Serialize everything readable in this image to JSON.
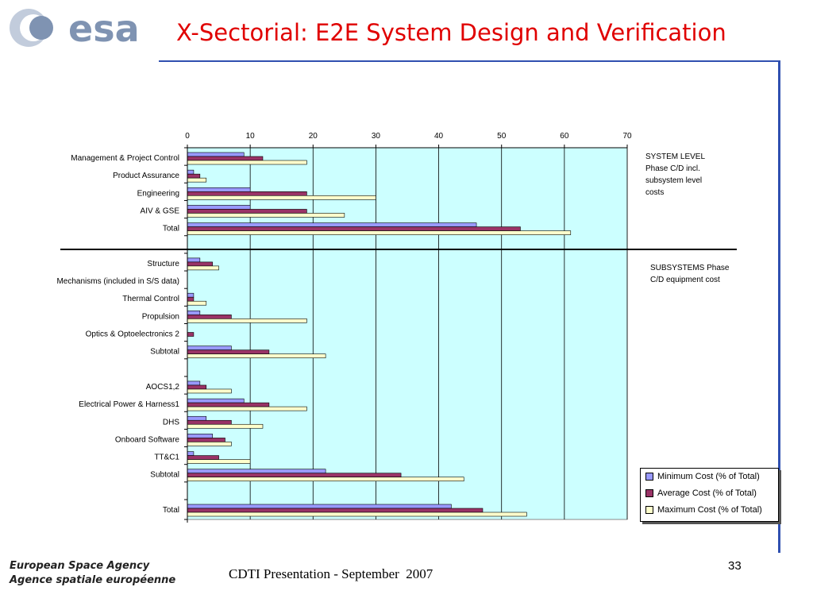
{
  "slide": {
    "logo_text": "esa",
    "title": "X-Sectorial: E2E System Design and Verification",
    "footer_agency_en": "European Space Agency",
    "footer_agency_fr": "Agence spatiale européenne",
    "footer_presentation": "CDTI Presentation - September  2007",
    "page_number": "33",
    "notes": {
      "system_level": "SYSTEM LEVEL\nPhase C/D incl.\nsubsystem level\ncosts",
      "subsystems": "SUBSYSTEMS Phase\nC/D equipment cost"
    }
  },
  "colors": {
    "title": "#e00000",
    "plot_background": "#ccffff",
    "minimum": "#9999ff",
    "average": "#993366",
    "maximum": "#ffffcc"
  },
  "chart_data": {
    "type": "bar",
    "orientation": "horizontal",
    "xlim": [
      0,
      70
    ],
    "x_ticks": [
      "0",
      "10",
      "20",
      "30",
      "40",
      "50",
      "60",
      "70"
    ],
    "categories": [
      "Management & Project Control",
      "Product Assurance",
      "Engineering",
      "AIV & GSE",
      "Total",
      "",
      "Structure",
      "Mechanisms (included in S/S data)",
      "Thermal Control",
      "Propulsion",
      "Optics & Optoelectronics 2",
      "Subtotal",
      "",
      "AOCS1,2",
      "Electrical Power & Harness1",
      "DHS",
      "Onboard Software",
      "TT&C1",
      "Subtotal",
      "",
      "Total"
    ],
    "series": [
      {
        "name": "Minimum Cost (% of Total)",
        "color": "#9999ff",
        "values": [
          9,
          1,
          10,
          10,
          46,
          null,
          2,
          0,
          1,
          2,
          0,
          7,
          null,
          2,
          9,
          3,
          4,
          1,
          22,
          null,
          42
        ]
      },
      {
        "name": "Average Cost (% of Total)",
        "color": "#993366",
        "values": [
          12,
          2,
          19,
          19,
          53,
          null,
          4,
          0,
          1,
          7,
          1,
          13,
          null,
          3,
          13,
          7,
          6,
          5,
          34,
          null,
          47
        ]
      },
      {
        "name": "Maximum Cost (% of Total)",
        "color": "#ffffcc",
        "values": [
          19,
          3,
          30,
          25,
          61,
          null,
          5,
          0,
          3,
          19,
          0,
          22,
          null,
          7,
          19,
          12,
          7,
          10,
          44,
          null,
          54
        ]
      }
    ],
    "grid": true,
    "legend_position": "bottom-right"
  }
}
